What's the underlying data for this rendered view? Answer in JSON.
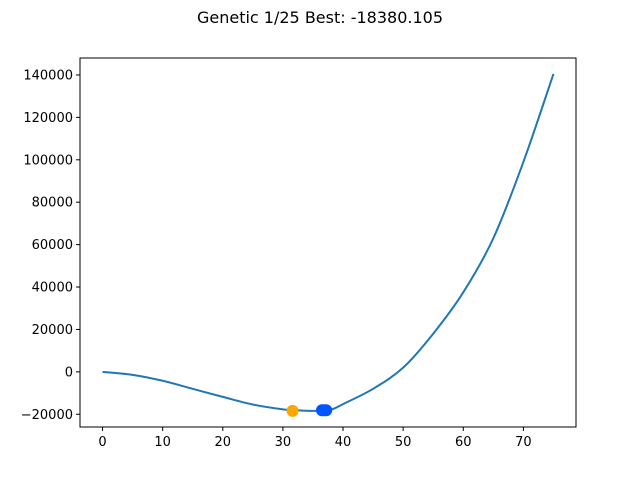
{
  "chart_data": {
    "type": "line",
    "title": "Genetic 1/25 Best: -18380.105",
    "xlabel": "",
    "ylabel": "",
    "xlim": [
      -3.75,
      78.75
    ],
    "ylim": [
      -26000,
      148000
    ],
    "x_ticks": [
      0,
      10,
      20,
      30,
      40,
      50,
      60,
      70
    ],
    "y_ticks": [
      -20000,
      0,
      20000,
      40000,
      60000,
      80000,
      100000,
      120000,
      140000
    ],
    "grid": false,
    "series": [
      {
        "color": "#1f77b4",
        "x": [
          0,
          5,
          10,
          15,
          20,
          25,
          30,
          32,
          35,
          38,
          40,
          45,
          50,
          55,
          60,
          65,
          70,
          75
        ],
        "y": [
          0,
          -1400,
          -4200,
          -8000,
          -11800,
          -15400,
          -17700,
          -18050,
          -18380,
          -17800,
          -15200,
          -8000,
          2000,
          18000,
          37500,
          63000,
          99000,
          140500
        ]
      }
    ],
    "markers": [
      {
        "x": 31.6,
        "y": -18380,
        "color": "#ffa500"
      },
      {
        "x": 36.5,
        "y": -18100,
        "color": "#0055ff"
      },
      {
        "x": 36.9,
        "y": -18100,
        "color": "#0055ff"
      },
      {
        "x": 37.2,
        "y": -18100,
        "color": "#0055ff"
      }
    ]
  }
}
